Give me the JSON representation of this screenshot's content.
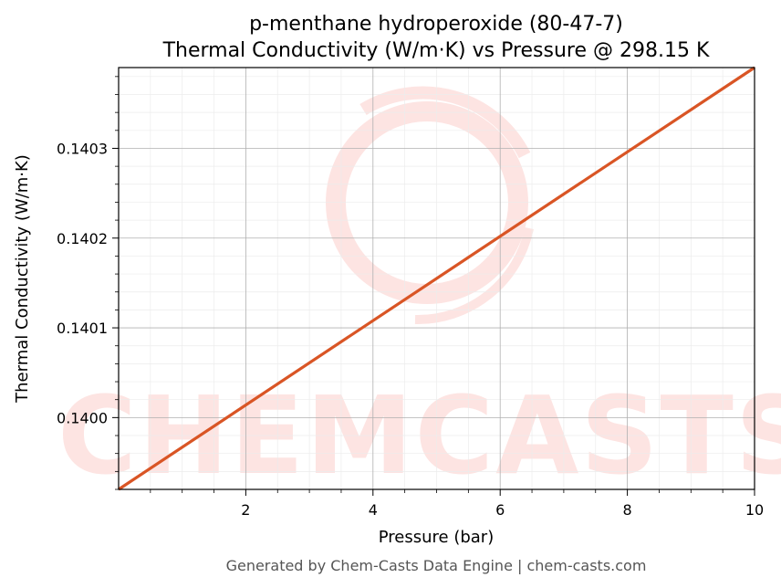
{
  "chart_data": {
    "type": "line",
    "title": "p-menthane hydroperoxide (80-47-7)",
    "subtitle": "Thermal Conductivity (W/m·K) vs Pressure @ 298.15 K",
    "xlabel": "Pressure (bar)",
    "ylabel": "Thermal Conductivity (W/m·K)",
    "xlim": [
      0,
      10
    ],
    "ylim": [
      0.13992,
      0.14039
    ],
    "x_ticks": [
      2,
      4,
      6,
      8,
      10
    ],
    "x_tick_labels": [
      "2",
      "4",
      "6",
      "8",
      "10"
    ],
    "y_ticks": [
      0.14,
      0.1401,
      0.1402,
      0.1403
    ],
    "y_tick_labels": [
      "0.1400",
      "0.1401",
      "0.1402",
      "0.1403"
    ],
    "grid": true,
    "series": [
      {
        "x": [
          0,
          10
        ],
        "y": [
          0.13992,
          0.14039
        ],
        "color": "#d95525"
      }
    ]
  },
  "watermark": {
    "text": "CHEMCASTS",
    "color": "#fde4e2"
  },
  "footer": "Generated by Chem-Casts Data Engine | chem-casts.com"
}
